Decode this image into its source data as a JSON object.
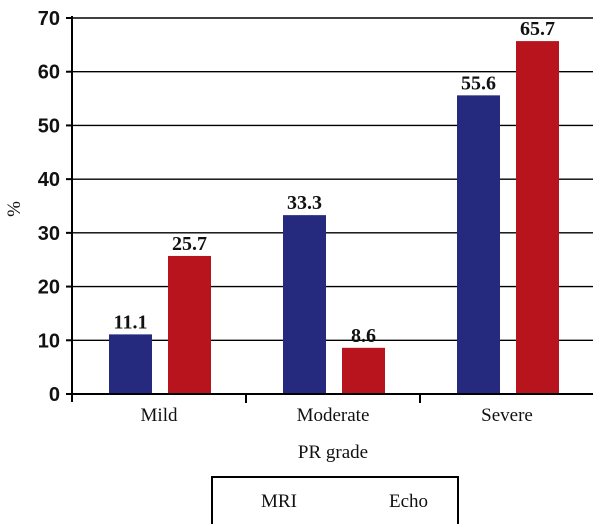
{
  "chart_data": {
    "type": "bar",
    "categories": [
      "Mild",
      "Moderate",
      "Severe"
    ],
    "series": [
      {
        "name": "MRI",
        "values": [
          11.1,
          33.3,
          55.6
        ],
        "color": "#252a7e"
      },
      {
        "name": "Echo",
        "values": [
          25.7,
          8.6,
          65.7
        ],
        "color": "#b8141d"
      }
    ],
    "data_labels": [
      [
        "11.1",
        "33.3",
        "55.6"
      ],
      [
        "25.7",
        "8.6",
        "65.7"
      ]
    ],
    "title": "",
    "xlabel": "PR grade",
    "ylabel": "%",
    "ylim": [
      0,
      70
    ],
    "yticks": [
      "0",
      "10",
      "20",
      "30",
      "40",
      "50",
      "60",
      "70"
    ],
    "grid": true,
    "legend_position": "bottom"
  }
}
